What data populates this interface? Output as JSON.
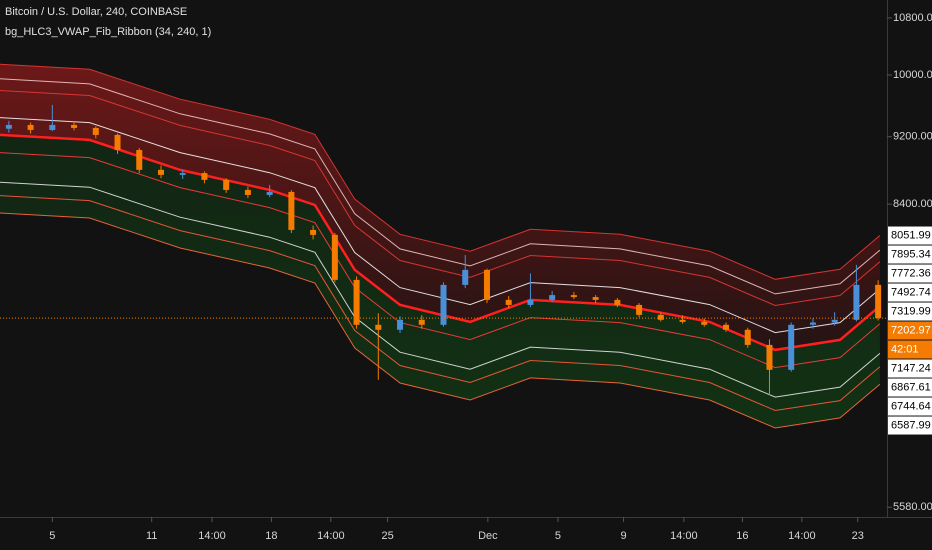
{
  "chart_data": {
    "type": "candlestick",
    "title": "Bitcoin / U.S. Dollar, 240, COINBASE",
    "subtitle": "bg_HLC3_VWAP_Fib_Ribbon (34, 240, 1)",
    "log": true,
    "grid": false,
    "xlim": [
      0,
      100
    ],
    "ylim": [
      5507,
      11065
    ],
    "yticks": [
      {
        "value": 10800,
        "label": "10800.00"
      },
      {
        "value": 10000,
        "label": "10000.00"
      },
      {
        "value": 9200,
        "label": "9200.00"
      },
      {
        "value": 8400,
        "label": "8400.00"
      },
      {
        "value": 5580,
        "label": "5580.00"
      }
    ],
    "xticks": [
      {
        "value": 5.9,
        "label": "5"
      },
      {
        "value": 17.1,
        "label": "11"
      },
      {
        "value": 23.9,
        "label": "14:00"
      },
      {
        "value": 30.6,
        "label": "18"
      },
      {
        "value": 37.3,
        "label": "14:00"
      },
      {
        "value": 43.7,
        "label": "25"
      },
      {
        "value": 55.0,
        "label": "Dec"
      },
      {
        "value": 62.9,
        "label": "5"
      },
      {
        "value": 70.3,
        "label": "9"
      },
      {
        "value": 77.1,
        "label": "14:00"
      },
      {
        "value": 83.7,
        "label": "16"
      },
      {
        "value": 90.4,
        "label": "14:00"
      },
      {
        "value": 96.7,
        "label": "23"
      }
    ],
    "up_color": "#4a90d9",
    "down_color": "#f57c00",
    "price_color": "#f57c00",
    "countdown": "42:01",
    "x": [
      1,
      3.45,
      5.9,
      8.35,
      10.8,
      13.25,
      15.7,
      18.15,
      20.6,
      23.05,
      25.5,
      27.95,
      30.4,
      32.85,
      35.3,
      37.75,
      40.2,
      42.65,
      45.1,
      47.55,
      50,
      52.45,
      54.9,
      57.35,
      59.8,
      62.25,
      64.7,
      67.15,
      69.6,
      72.05,
      74.5,
      76.95,
      79.4,
      81.85,
      84.3,
      86.75,
      89.2,
      91.65,
      94.1,
      96.55,
      99
    ],
    "open": [
      9300,
      9348,
      9285,
      9348,
      9310,
      9223,
      9037,
      8798,
      8739,
      8760,
      8680,
      8563,
      8505,
      8540,
      8113,
      8059,
      7584,
      7138,
      7090,
      7186,
      7138,
      7533,
      7687,
      7382,
      7332,
      7382,
      7430,
      7410,
      7382,
      7332,
      7234,
      7186,
      7166,
      7138,
      7090,
      6947,
      6717,
      7138,
      7160,
      7186,
      7533
    ],
    "high": [
      9400,
      9380,
      9604,
      9390,
      9330,
      9240,
      9062,
      8850,
      8800,
      8780,
      8700,
      8600,
      8621,
      8560,
      8160,
      8080,
      7620,
      7250,
      7220,
      7230,
      7560,
      7842,
      7700,
      7420,
      7650,
      7470,
      7460,
      7430,
      7400,
      7350,
      7260,
      7230,
      7200,
      7160,
      7110,
      7000,
      7160,
      7200,
      7260,
      7739,
      7580
    ],
    "low": [
      9250,
      9240,
      9270,
      9280,
      9180,
      8990,
      8760,
      8700,
      8690,
      8640,
      8530,
      8470,
      8480,
      8080,
      8010,
      7560,
      7100,
      6627,
      7060,
      7100,
      7120,
      7500,
      7350,
      7300,
      7310,
      7360,
      7390,
      7350,
      7310,
      7210,
      7170,
      7150,
      7120,
      7070,
      6920,
      6493,
      6700,
      7100,
      7130,
      7170,
      7180
    ],
    "close": [
      9348,
      9285,
      9348,
      9310,
      9223,
      9037,
      8798,
      8739,
      8760,
      8680,
      8563,
      8505,
      8540,
      8113,
      8059,
      7584,
      7138,
      7090,
      7186,
      7138,
      7533,
      7687,
      7382,
      7332,
      7382,
      7430,
      7410,
      7382,
      7332,
      7234,
      7186,
      7166,
      7138,
      7090,
      6947,
      6717,
      7138,
      7160,
      7186,
      7533,
      7202.97
    ],
    "bands": {
      "x": [
        0,
        10.1,
        20.3,
        30.4,
        35.5,
        40,
        45.1,
        53,
        59.8,
        69.9,
        80,
        87.4,
        94.7,
        99.2
      ],
      "upper_fill": "#8b1a1a",
      "lower_fill": "#124a16",
      "series": [
        {
          "color": "#e53935",
          "values": [
            10145,
            10077,
            9678,
            9419,
            9230,
            8456,
            8065,
            7883,
            8120,
            8065,
            7883,
            7590,
            7693,
            8051.99
          ]
        },
        {
          "color": "#f2c4c4",
          "values": [
            9948,
            9881,
            9490,
            9236,
            9051,
            8291,
            7908,
            7729,
            7962,
            7908,
            7729,
            7442,
            7544,
            7895.34
          ]
        },
        {
          "color": "#e53935",
          "values": [
            9793,
            9727,
            9342,
            9092,
            8910,
            8162,
            7785,
            7609,
            7838,
            7785,
            7609,
            7326,
            7426,
            7772.36
          ]
        },
        {
          "color": "#f4f4f4",
          "values": [
            9441,
            9377,
            9006,
            8765,
            8589,
            7868,
            7505,
            7335,
            7556,
            7505,
            7335,
            7063,
            7159,
            7492.74
          ]
        },
        {
          "color": "#ff1f1f",
          "values": [
            9223,
            9161,
            8798,
            8563,
            8391,
            7687,
            7332,
            7166,
            7382,
            7332,
            7166,
            6900,
            6994,
            7319.99
          ]
        },
        {
          "color": "#ff3d3d",
          "values": [
            9005,
            8945,
            8590,
            8361,
            8193,
            7506,
            7159,
            6997,
            7208,
            7159,
            6997,
            6737,
            6829,
            7147.24
          ]
        },
        {
          "color": "#e6e6e6",
          "values": [
            8653,
            8595,
            8254,
            8034,
            7872,
            7212,
            6879,
            6723,
            6926,
            6879,
            6723,
            6474,
            6562,
            6867.61
          ]
        },
        {
          "color": "#ff5a3d",
          "values": [
            8498,
            8441,
            8106,
            7890,
            7731,
            7083,
            6756,
            6603,
            6802,
            6756,
            6603,
            6358,
            6444,
            6744.64
          ]
        },
        {
          "color": "#ff6a3d",
          "values": [
            8301,
            8245,
            7918,
            7707,
            7552,
            6918,
            6599,
            6449,
            6644,
            6599,
            6449,
            6210,
            6295,
            6587.99
          ]
        }
      ]
    }
  }
}
